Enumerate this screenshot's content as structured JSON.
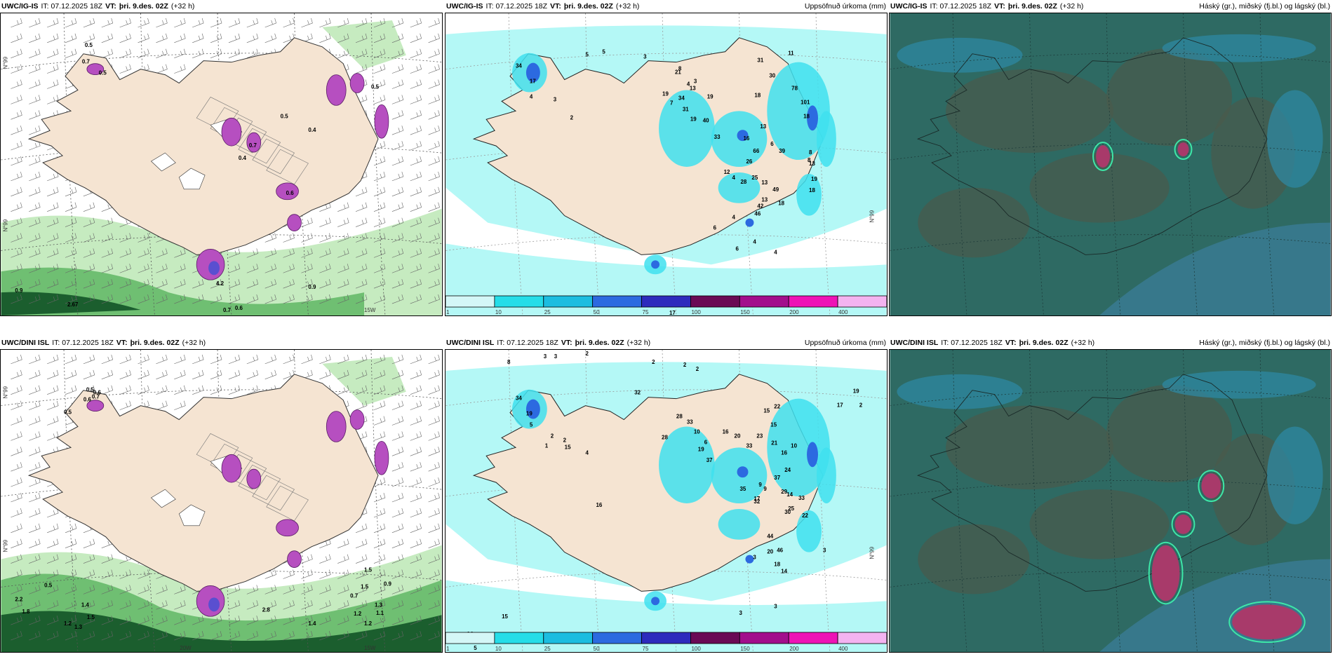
{
  "panels": [
    {
      "id": "p1",
      "source": "UWC/IG-IS",
      "it": "IT: 07.12.2025 18Z",
      "vt_label": "VT:",
      "vt": "þri. 9.des. 02Z",
      "lead": "(+32 h)",
      "right_title": "",
      "labels": [
        "0.5",
        "0.7",
        "0.5",
        "0.4",
        "0.7",
        "0.5",
        "0.4",
        "0.6",
        "0.9",
        "2.67",
        "0.7",
        "0.6",
        "0.9",
        "4.2",
        "0.5"
      ],
      "axis": [
        "N°99",
        "N°99",
        "15W"
      ]
    },
    {
      "id": "p2",
      "source": "UWC/IG-IS",
      "it": "IT: 07.12.2025 18Z",
      "vt_label": "VT:",
      "vt": "þri. 9.des. 02Z",
      "lead": "(+32 h)",
      "right_title": "Uppsöfnuð úrkoma (mm)",
      "labels": [
        "5",
        "5",
        "3",
        "34",
        "17",
        "4",
        "3",
        "2",
        "8",
        "4",
        "3",
        "31",
        "30",
        "11",
        "19",
        "34",
        "31",
        "21",
        "13",
        "7",
        "19",
        "40",
        "33",
        "19",
        "78",
        "18",
        "101",
        "16",
        "13",
        "18",
        "6",
        "26",
        "66",
        "39",
        "8",
        "8",
        "13",
        "4",
        "12",
        "28",
        "25",
        "13",
        "19",
        "18",
        "13",
        "49",
        "42",
        "46",
        "18",
        "4",
        "6",
        "4",
        "4",
        "6",
        "17"
      ],
      "axis": [
        "N°99"
      ]
    },
    {
      "id": "p3",
      "source": "UWC/IG-IS",
      "it": "IT: 07.12.2025 18Z",
      "vt_label": "VT:",
      "vt": "þri. 9.des. 02Z",
      "lead": "(+32 h)",
      "right_title": "Háský (gr.), miðský (fj.bl.) og lágský (bl.)",
      "labels": [],
      "axis": []
    },
    {
      "id": "p4",
      "source": "UWC/DINI ISL",
      "it": "IT: 07.12.2025 18Z",
      "vt_label": "VT:",
      "vt": "þri. 9.des. 02Z",
      "lead": "(+32 h)",
      "right_title": "",
      "labels": [
        "0.5",
        "0.6",
        "0.5",
        "0.7",
        "0.6",
        "1.5",
        "0.5",
        "2.2",
        "1.8",
        "1.4",
        "1.5",
        "1.3",
        "1.2",
        "2.8",
        "1.4",
        "1.2",
        "1.3",
        "0.7",
        "1.5",
        "0.9",
        "1.1",
        "1.2"
      ],
      "axis": [
        "N°99",
        "N°99",
        "20W",
        "15W"
      ]
    },
    {
      "id": "p5",
      "source": "UWC/DINI ISL",
      "it": "IT: 07.12.2025 18Z",
      "vt_label": "VT:",
      "vt": "þri. 9.des. 02Z",
      "lead": "(+32 h)",
      "right_title": "Uppsöfnuð úrkoma (mm)",
      "labels": [
        "8",
        "3",
        "3",
        "2",
        "2",
        "2",
        "2",
        "34",
        "19",
        "5",
        "2",
        "1",
        "2",
        "15",
        "4",
        "16",
        "32",
        "28",
        "28",
        "33",
        "10",
        "19",
        "6",
        "37",
        "16",
        "20",
        "33",
        "23",
        "21",
        "22",
        "15",
        "15",
        "16",
        "10",
        "24",
        "35",
        "9",
        "9",
        "37",
        "29",
        "17",
        "32",
        "14",
        "25",
        "22",
        "33",
        "30",
        "44",
        "46",
        "20",
        "18",
        "14",
        "15",
        "14",
        "5",
        "3",
        "3",
        "3",
        "3",
        "2",
        "17",
        "19"
      ],
      "axis": [
        "N°99"
      ]
    },
    {
      "id": "p6",
      "source": "UWC/DINI ISL",
      "it": "IT: 07.12.2025 18Z",
      "vt_label": "VT:",
      "vt": "þri. 9.des. 02Z",
      "lead": "(+32 h)",
      "right_title": "Háský (gr.), miðský (fj.bl.) og lágský (bl.)",
      "labels": [],
      "axis": []
    }
  ],
  "colorbar": {
    "ticks": [
      "1",
      "10",
      "25",
      "50",
      "75",
      "100",
      "150",
      "200",
      "400"
    ],
    "colors": [
      "#d4f7f7",
      "#25dde8",
      "#1cbde0",
      "#2c6ae0",
      "#2d2bbd",
      "#6a0a55",
      "#a20e8c",
      "#ee13b6",
      "#f4b3f0"
    ]
  },
  "colors": {
    "land": "#f5e4d2",
    "pink": "#b64fc0",
    "green_light": "#c6ebc0",
    "green_dark": "#1b5e2e",
    "cyan": "#b4f8f6",
    "cloud_bg": "#2e6a63"
  }
}
